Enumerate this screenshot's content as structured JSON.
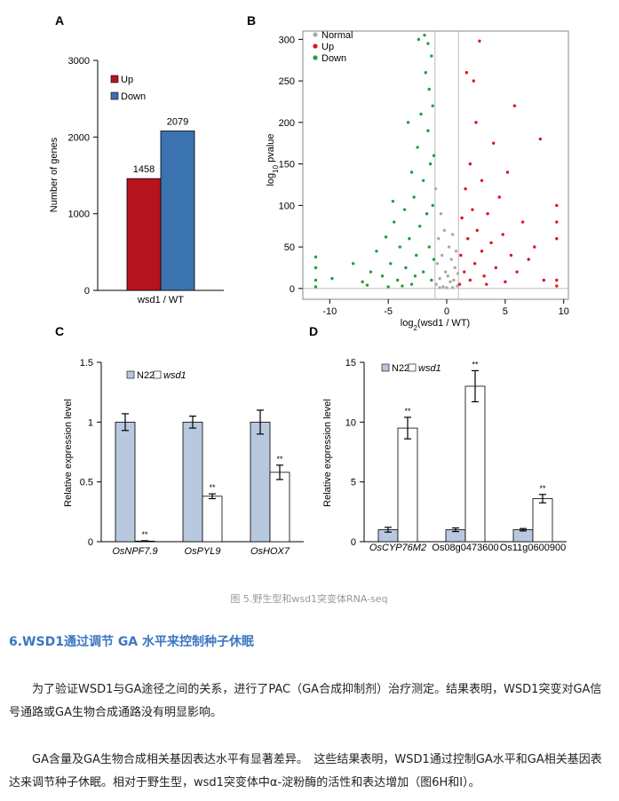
{
  "chart_data": [
    {
      "type": "bar",
      "panel": "A",
      "ylabel": "Number of genes",
      "categories": [
        "wsd1 / WT"
      ],
      "ylim": [
        0,
        3000
      ],
      "yticks": [
        0,
        1000,
        2000,
        3000
      ],
      "show_values": true,
      "series": [
        {
          "name": "Up",
          "color": "#b5141f",
          "values": [
            1458
          ]
        },
        {
          "name": "Down",
          "color": "#3b72b0",
          "values": [
            2079
          ]
        }
      ]
    },
    {
      "type": "scatter",
      "panel": "B",
      "xlabel_parts": [
        "log",
        "2",
        "(wsd1 / WT)"
      ],
      "ylabel_parts": [
        "log",
        "10",
        " pvalue"
      ],
      "xlim": [
        -12.3,
        10.4
      ],
      "ylim": [
        -13,
        310
      ],
      "xticks": [
        -10,
        -5,
        0,
        5,
        10
      ],
      "yticks": [
        0,
        50,
        100,
        150,
        200,
        250,
        300
      ],
      "vlines": [
        -1,
        1
      ],
      "hlines": [
        0
      ],
      "series": [
        {
          "name": "Normal",
          "color": "#aaaaaa",
          "x": [
            -0.9,
            -0.8,
            -0.7,
            -0.6,
            -0.5,
            -0.4,
            -0.3,
            -0.2,
            -0.1,
            0,
            0.1,
            0.2,
            0.3,
            0.4,
            0.5,
            0.6,
            0.7,
            0.8,
            0.9,
            -0.95,
            0.95,
            -0.6,
            0.5
          ],
          "values": [
            5,
            30,
            60,
            12,
            90,
            40,
            2,
            70,
            20,
            1,
            15,
            50,
            8,
            35,
            65,
            10,
            25,
            45,
            3,
            120,
            18,
            1,
            1
          ]
        },
        {
          "name": "Up",
          "color": "#e0141c",
          "x": [
            1.1,
            1.2,
            1.3,
            1.5,
            1.6,
            1.8,
            2,
            2,
            2.2,
            2.4,
            2.5,
            2.6,
            2.8,
            3,
            3,
            3.2,
            3.5,
            3.8,
            4,
            4.2,
            4.5,
            4.8,
            5,
            5.2,
            5.5,
            5.8,
            6,
            6.5,
            7,
            7.5,
            8,
            8.3,
            9.4,
            9.4,
            9.4,
            9.4,
            9.4,
            1.7,
            2.3,
            3.4
          ],
          "values": [
            5,
            40,
            85,
            20,
            120,
            60,
            10,
            150,
            95,
            30,
            200,
            70,
            298,
            45,
            130,
            15,
            90,
            55,
            175,
            25,
            110,
            65,
            8,
            140,
            40,
            220,
            20,
            80,
            35,
            50,
            180,
            10,
            3,
            10,
            60,
            80,
            100,
            260,
            250,
            5
          ]
        },
        {
          "name": "Down",
          "color": "#22a03a",
          "x": [
            -11.2,
            -11.2,
            -11.2,
            -11.2,
            -9.8,
            -8,
            -7.2,
            -6.5,
            -6,
            -5.5,
            -5.2,
            -4.8,
            -4.5,
            -4.2,
            -4,
            -3.6,
            -3.5,
            -3.2,
            -3,
            -3,
            -2.8,
            -2.6,
            -2.5,
            -2.3,
            -2.2,
            -2,
            -2,
            -1.9,
            -1.8,
            -1.7,
            -1.6,
            -1.5,
            -1.5,
            -1.4,
            -1.3,
            -1.3,
            -1.2,
            -1.2,
            -1.1,
            -1.1,
            -3.8,
            -5,
            -6.8,
            -2.4,
            -1.6,
            -4.6,
            -3.3,
            -2.7
          ],
          "values": [
            2,
            10,
            25,
            38,
            12,
            30,
            8,
            20,
            45,
            15,
            62,
            30,
            80,
            10,
            50,
            95,
            25,
            60,
            140,
            5,
            110,
            40,
            170,
            75,
            210,
            130,
            20,
            305,
            260,
            90,
            190,
            240,
            50,
            150,
            280,
            10,
            220,
            100,
            160,
            35,
            3,
            2,
            4,
            300,
            295,
            105,
            200,
            15
          ]
        }
      ]
    },
    {
      "type": "bar",
      "panel": "C",
      "ylabel": "Relative expression level",
      "categories": [
        "OsNPF7.9",
        "OsPYL9",
        "OsHOX7"
      ],
      "italic": [
        true,
        true,
        true
      ],
      "ylim": [
        0,
        1.5
      ],
      "yticks": [
        0,
        0.5,
        1,
        1.5
      ],
      "legend_italic": [
        false,
        true
      ],
      "series": [
        {
          "name": "N22",
          "color": "#b8c8df",
          "values": [
            1,
            1,
            1
          ],
          "errors": [
            0.07,
            0.05,
            0.1
          ]
        },
        {
          "name": "wsd1",
          "color": "#ffffff",
          "values": [
            0.005,
            0.38,
            0.58
          ],
          "errors": [
            0.003,
            0.02,
            0.06
          ],
          "labels": [
            "**",
            "**",
            "**"
          ]
        }
      ]
    },
    {
      "type": "bar",
      "panel": "D",
      "ylabel": "Relative expression level",
      "categories": [
        "OsCYP76M2",
        "Os08g0473600",
        "Os11g0600900"
      ],
      "italic": [
        true,
        false,
        false
      ],
      "ylim": [
        0,
        15
      ],
      "yticks": [
        0,
        5,
        10,
        15
      ],
      "legend_italic": [
        false,
        true
      ],
      "series": [
        {
          "name": "N22",
          "color": "#b8c8df",
          "values": [
            1,
            1,
            1
          ],
          "errors": [
            0.2,
            0.15,
            0.1
          ]
        },
        {
          "name": "wsd1",
          "color": "#ffffff",
          "values": [
            9.5,
            13,
            3.6
          ],
          "errors": [
            0.9,
            1.3,
            0.35
          ],
          "labels": [
            "**",
            "**",
            "**"
          ]
        }
      ]
    }
  ],
  "caption": "图 5.野生型和wsd1突变体RNA-seq",
  "heading": "6.WSD1通过调节 GA 水平来控制种子休眠",
  "paragraphs": [
    "为了验证WSD1与GA途径之间的关系，进行了PAC（GA合成抑制剂）治疗测定。结果表明，WSD1突变对GA信号通路或GA生物合成通路没有明显影响。",
    "GA含量及GA生物合成相关基因表达水平有显著差异。　这些结果表明，WSD1通过控制GA水平和GA相关基因表达来调节种子休眠。相对于野生型，wsd1突变体中α-淀粉酶的活性和表达增加（图6H和I）。"
  ]
}
